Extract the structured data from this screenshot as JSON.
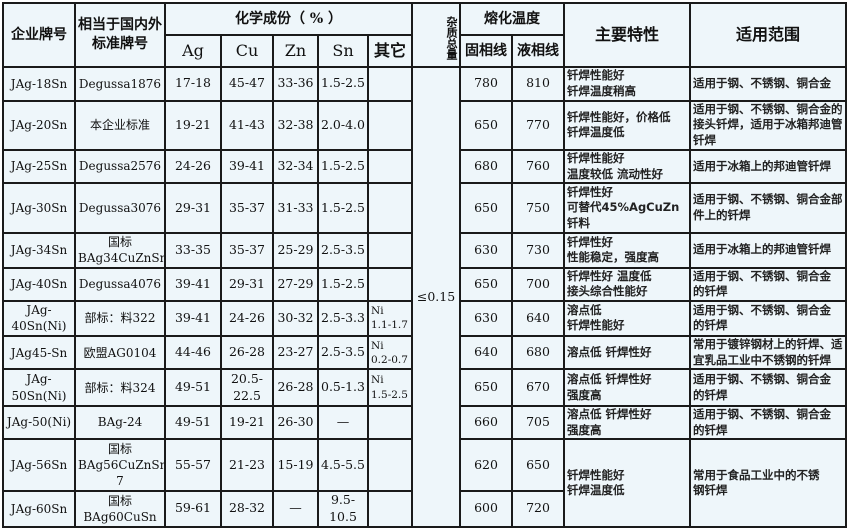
{
  "header": {
    "grade": "企业牌号",
    "equivalent": "相当于国内外标准牌号",
    "composition": "化学成份（ % ）",
    "elements": [
      "Ag",
      "Cu",
      "Zn",
      "Sn",
      "其它"
    ],
    "impurity": "杂质总量",
    "melting": "熔化温度",
    "solidus": "固相线",
    "liquidus": "液相线",
    "properties": "主要特性",
    "application": "适用范围"
  },
  "impurity_value": "≤0.15",
  "rows": [
    {
      "grade": "JAg-18Sn",
      "std": "Degussa1876",
      "ag": "17-18",
      "cu": "45-47",
      "zn": "33-36",
      "sn": "1.5-2.5",
      "other": "",
      "sol": "780",
      "liq": "810",
      "prop": "钎焊性能好\n钎焊温度稍高",
      "app": "适用于钢、不锈钢、铜合金"
    },
    {
      "grade": "JAg-20Sn",
      "std": "本企业标准",
      "ag": "19-21",
      "cu": "41-43",
      "zn": "32-38",
      "sn": "2.0-4.0",
      "other": "",
      "sol": "650",
      "liq": "770",
      "prop": "钎焊性能好，价格低\n钎焊温度低",
      "app": "适用于钢、不锈钢、铜合金的接头钎焊，适用于冰箱邦迪管钎焊"
    },
    {
      "grade": "JAg-25Sn",
      "std": "Degussa2576",
      "ag": "24-26",
      "cu": "39-41",
      "zn": "32-34",
      "sn": "1.5-2.5",
      "other": "",
      "sol": "680",
      "liq": "760",
      "prop": "钎焊性能好\n温度较低  流动性好",
      "app": "适用于冰箱上的邦迪管钎焊"
    },
    {
      "grade": "JAg-30Sn",
      "std": "Degussa3076",
      "ag": "29-31",
      "cu": "35-37",
      "zn": "31-33",
      "sn": "1.5-2.5",
      "other": "",
      "sol": "650",
      "liq": "750",
      "prop": "钎焊性好\n可替代45%AgCuZn钎料",
      "app": "适用于钢、不锈钢、铜合金部件上的钎焊"
    },
    {
      "grade": "JAg-34Sn",
      "std": "国标BAg34CuZnSn",
      "ag": "33-35",
      "cu": "35-37",
      "zn": "25-29",
      "sn": "2.5-3.5",
      "other": "",
      "sol": "630",
      "liq": "730",
      "prop": "钎焊性好\n性能稳定，强度高",
      "app": "适用于冰箱上的邦迪管钎焊"
    },
    {
      "grade": "JAg-40Sn",
      "std": "Degussa4076",
      "ag": "39-41",
      "cu": "29-31",
      "zn": "27-29",
      "sn": "1.5-2.5",
      "other": "",
      "sol": "650",
      "liq": "700",
      "prop": "钎焊性好  温度低\n接头综合性能好",
      "app": "适用于钢、不锈钢、铜合金\n的钎焊"
    },
    {
      "grade": "JAg-40Sn(Ni)",
      "std": "部标：料322",
      "ag": "39-41",
      "cu": "24-26",
      "zn": "30-32",
      "sn": "2.5-3.3",
      "other": "Ni\n1.1-1.7",
      "sol": "630",
      "liq": "640",
      "prop": "溶点低\n钎焊性能好",
      "app": "适用于钢、不锈钢、铜合金\n的钎焊"
    },
    {
      "grade": "JAg45-Sn",
      "std": "欧盟AG0104",
      "ag": "44-46",
      "cu": "26-28",
      "zn": "23-27",
      "sn": "2.5-3.5",
      "other": "Ni\n0.2-0.7",
      "sol": "640",
      "liq": "680",
      "prop": "溶点低  钎焊性好",
      "app": "常用于镀锌钢材上的钎焊、适宜乳品工业中不锈钢的钎焊"
    },
    {
      "grade": "JAg-50Sn(Ni)",
      "std": "部标：料324",
      "ag": "49-51",
      "cu": "20.5-22.5",
      "zn": "26-28",
      "sn": "0.5-1.3",
      "other": "Ni\n1.5-2.5",
      "sol": "650",
      "liq": "670",
      "prop": "溶点低  钎焊性好\n强度高",
      "app": "适用于钢、不锈钢、铜合金\n的钎焊"
    },
    {
      "grade": "JAg-50(Ni)",
      "std": "BAg-24",
      "ag": "49-51",
      "cu": "19-21",
      "zn": "26-30",
      "sn": "—",
      "other": "",
      "sol": "660",
      "liq": "705",
      "prop": "溶点低  钎焊性好\n强度高",
      "app": "适用于钢、不锈钢、铜合金\n的钎焊"
    },
    {
      "grade": "JAg-56Sn",
      "std": "国标\nBAg56CuZnSnBAg-7",
      "ag": "55-57",
      "cu": "21-23",
      "zn": "15-19",
      "sn": "4.5-5.5",
      "other": "",
      "sol": "620",
      "liq": "650",
      "prop": "钎焊性能好\n钎焊温度低",
      "app": "常用于食品工业中的不锈\n钢钎焊"
    },
    {
      "grade": "JAg-60Sn",
      "std": "国标BAg60CuSn",
      "ag": "59-61",
      "cu": "28-32",
      "zn": "—",
      "sn": "9.5-10.5",
      "other": "",
      "sol": "600",
      "liq": "720"
    }
  ]
}
